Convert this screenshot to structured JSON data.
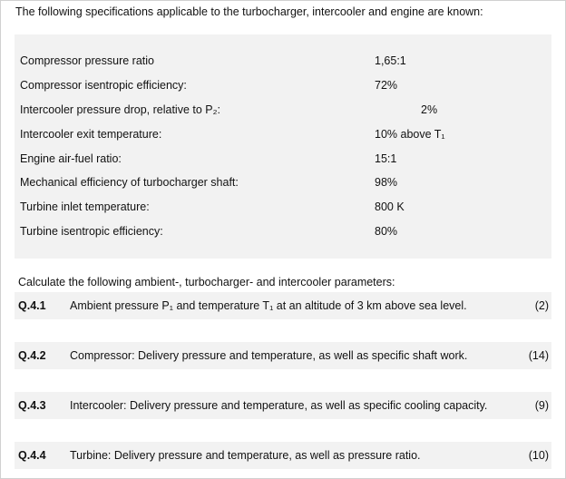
{
  "heading": "The following specifications applicable to the turbocharger, intercooler and engine are known:",
  "specs": [
    {
      "label": "Compressor pressure ratio",
      "value": "1,65:1"
    },
    {
      "label": "Compressor isentropic efficiency:",
      "value": "72%"
    },
    {
      "label": "Intercooler pressure drop, relative to P₂:",
      "value": "2%"
    },
    {
      "label": "Intercooler exit temperature:",
      "value": "10% above T₁"
    },
    {
      "label": "Engine air-fuel ratio:",
      "value": "15:1"
    },
    {
      "label": "Mechanical efficiency of turbocharger shaft:",
      "value": "98%"
    },
    {
      "label": "Turbine inlet temperature:",
      "value": "800 K"
    },
    {
      "label": "Turbine isentropic efficiency:",
      "value": "80%"
    }
  ],
  "instruction": "Calculate the following ambient-, turbocharger- and intercooler parameters:",
  "questions": [
    {
      "number": "Q.4.1",
      "text": "Ambient pressure P₁ and temperature T₁ at an altitude of 3 km above sea level.",
      "marks": "(2)"
    },
    {
      "number": "Q.4.2",
      "text": "Compressor: Delivery pressure and temperature, as well as specific shaft work.",
      "marks": "(14)"
    },
    {
      "number": "Q.4.3",
      "text": "Intercooler: Delivery pressure and temperature, as well as specific cooling capacity.",
      "marks": "(9)"
    },
    {
      "number": "Q.4.4",
      "text": "Turbine: Delivery pressure and temperature, as well as pressure ratio.",
      "marks": "(10)"
    }
  ]
}
